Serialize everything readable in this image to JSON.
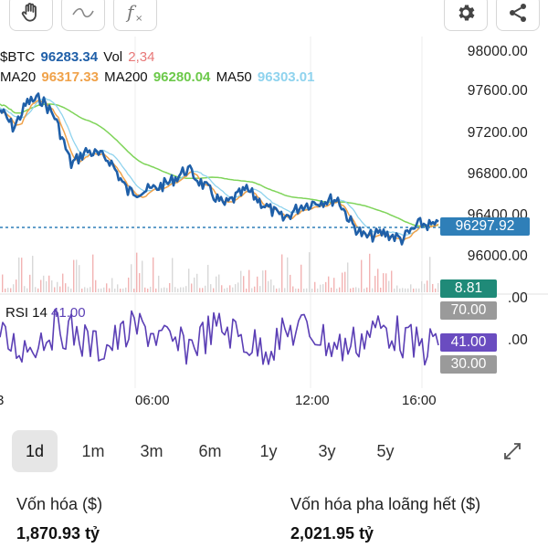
{
  "toolbar": {
    "left_icons": [
      "hand-icon",
      "wave-icon",
      "function-icon"
    ],
    "right_icons": [
      "gear-icon",
      "share-icon"
    ]
  },
  "legend": {
    "symbol": "$BTC",
    "price": "96283.34",
    "vol_label": "Vol",
    "vol_value": "2,34",
    "ma20_label": "MA20",
    "ma20_value": "96317.33",
    "ma200_label": "MA200",
    "ma200_value": "96280.04",
    "ma50_label": "MA50",
    "ma50_value": "96303.01"
  },
  "price_axis": [
    "98000.00",
    "97600.00",
    "97200.00",
    "96800.00",
    "96400.00",
    "96000.00"
  ],
  "current_price_badge": "96297.92",
  "volume_badge": "8.81",
  "volume_axis_partial": ".00",
  "rsi": {
    "label": "RSI 14",
    "value": "41.00",
    "axis_partial": ".00",
    "upper_badge": "70.00",
    "value_badge": "41.00",
    "lower_badge": "30.00"
  },
  "time_axis": [
    "3",
    "06:00",
    "12:00",
    "16:00"
  ],
  "ranges": [
    "1d",
    "1m",
    "3m",
    "6m",
    "1y",
    "3y",
    "5y"
  ],
  "active_range": "1d",
  "expand_icon": "expand-icon",
  "stats": {
    "market_cap_label": "Vốn hóa ($)",
    "market_cap_value": "1,870.93 tỷ",
    "fdv_label": "Vốn hóa pha loãng hết ($)",
    "fdv_value": "2,021.95 tỷ"
  },
  "colors": {
    "price_line": "#1f5fa8",
    "ma20": "#f0a24a",
    "ma200": "#7fd45a",
    "ma50": "#8fd3ee",
    "rsi_line": "#5b3fb5",
    "badge_blue": "#2f7fb8",
    "badge_teal": "#1f8a78",
    "badge_gray": "#9a9a9a",
    "badge_purple": "#6a4cc0",
    "vol_red": "#e87878",
    "dotted": "#2f7fb8"
  }
}
